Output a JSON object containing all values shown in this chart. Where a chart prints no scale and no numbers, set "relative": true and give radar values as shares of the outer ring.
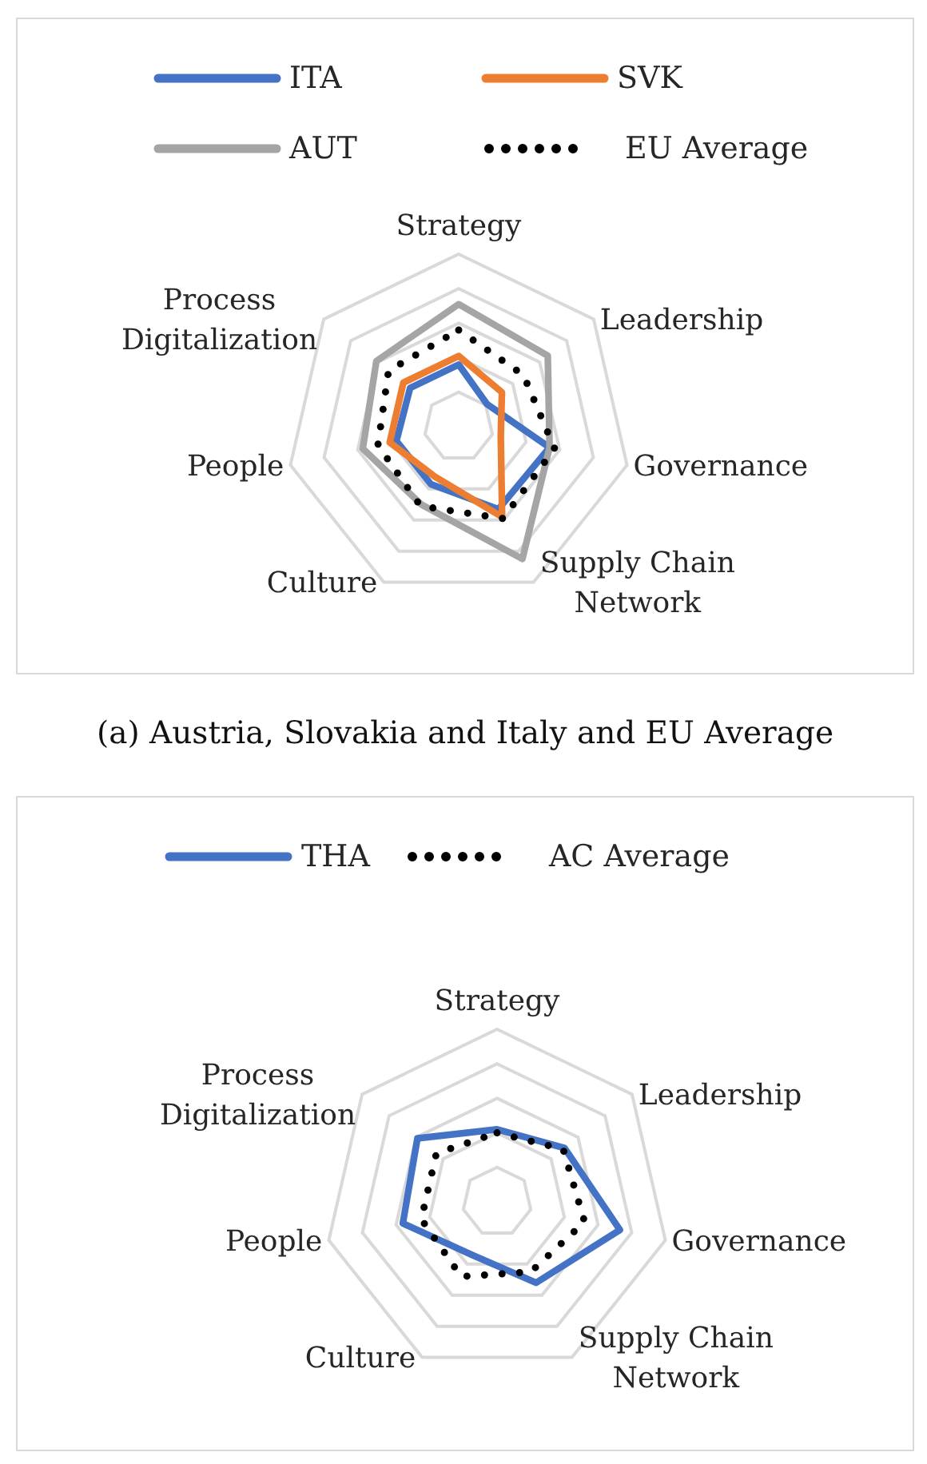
{
  "chart_data": [
    {
      "type": "radar",
      "title": "(a) Austria, Slovakia and Italy and EU Average",
      "categories": [
        "Strategy",
        "Leadership",
        "Governance",
        "Supply Chain Network",
        "Culture",
        "People",
        "Process Digitalization"
      ],
      "relative": true,
      "grid": true,
      "legend": "top",
      "series": [
        {
          "name": "ITA",
          "color": "#4472c4",
          "values": [
            0.36,
            0.21,
            0.54,
            0.53,
            0.37,
            0.37,
            0.36
          ]
        },
        {
          "name": "SVK",
          "color": "#ed7d31",
          "values": [
            0.41,
            0.32,
            0.25,
            0.58,
            0.32,
            0.41,
            0.41
          ]
        },
        {
          "name": "AUT",
          "color": "#a5a5a5",
          "values": [
            0.71,
            0.66,
            0.54,
            0.85,
            0.5,
            0.57,
            0.61
          ]
        },
        {
          "name": "EU Average",
          "color": "#000000",
          "line_style": "dotted",
          "values": [
            0.56,
            0.48,
            0.57,
            0.59,
            0.51,
            0.48,
            0.52
          ]
        }
      ]
    },
    {
      "type": "radar",
      "categories": [
        "Strategy",
        "Leadership",
        "Governance",
        "Supply Chain Network",
        "Culture",
        "People",
        "Process Digitalization"
      ],
      "relative": true,
      "grid": true,
      "legend": "top",
      "series": [
        {
          "name": "THA",
          "color": "#4472c4",
          "values": [
            0.42,
            0.5,
            0.73,
            0.52,
            0.34,
            0.56,
            0.59
          ]
        },
        {
          "name": "AC Average",
          "color": "#000000",
          "line_style": "dotted",
          "values": [
            0.4,
            0.49,
            0.52,
            0.45,
            0.48,
            0.45,
            0.45
          ]
        }
      ]
    }
  ]
}
